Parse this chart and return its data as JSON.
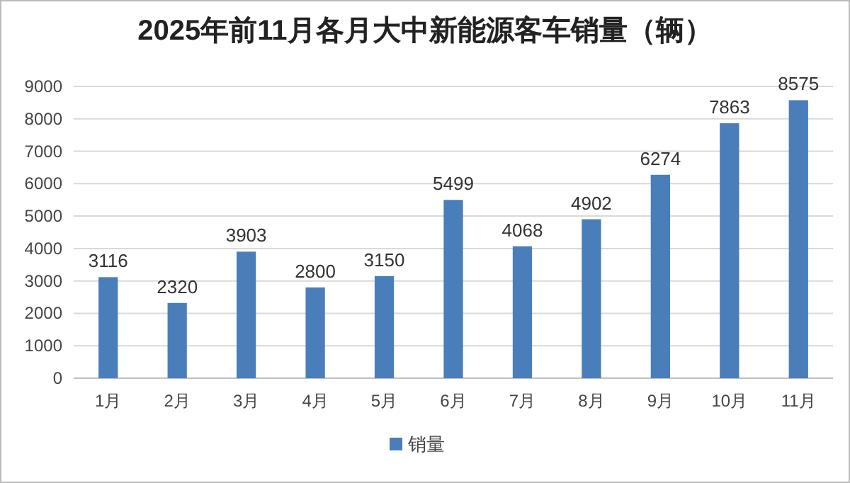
{
  "chart_data": {
    "type": "bar",
    "title": "2025年前11月各月大中新能源客车销量（辆）",
    "categories": [
      "1月",
      "2月",
      "3月",
      "4月",
      "5月",
      "6月",
      "7月",
      "8月",
      "9月",
      "10月",
      "11月"
    ],
    "series": [
      {
        "name": "销量",
        "color": "#4a7ebb",
        "values": [
          3116,
          2320,
          3903,
          2800,
          3150,
          5499,
          4068,
          4902,
          6274,
          7863,
          8575
        ]
      }
    ],
    "ylim": [
      0,
      9000
    ],
    "yticks": [
      0,
      1000,
      2000,
      3000,
      4000,
      5000,
      6000,
      7000,
      8000,
      9000
    ],
    "grid": "y",
    "legend": "bottom",
    "data_labels": true
  }
}
